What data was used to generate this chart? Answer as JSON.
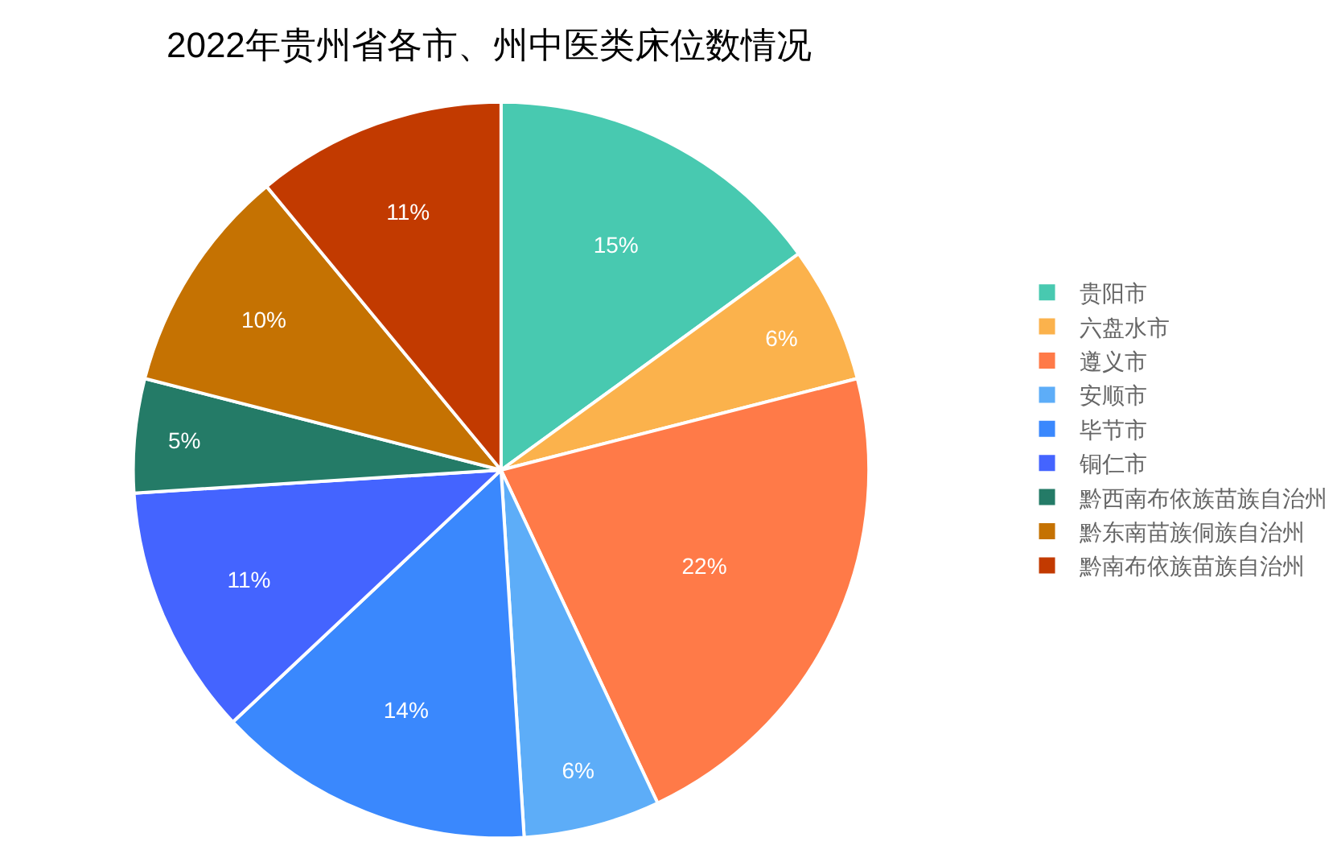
{
  "chart_data": {
    "type": "pie",
    "title": "2022年贵州省各市、州中医类床位数情况",
    "categories": [
      "贵阳市",
      "六盘水市",
      "遵义市",
      "安顺市",
      "毕节市",
      "铜仁市",
      "黔西南布依族苗族自治州",
      "黔东南苗族侗族自治州",
      "黔南布依族苗族自治州"
    ],
    "values": [
      15,
      6,
      22,
      6,
      14,
      11,
      5,
      10,
      11
    ],
    "value_labels": [
      "15%",
      "6%",
      "22%",
      "6%",
      "14%",
      "11%",
      "5%",
      "10%",
      "11%"
    ],
    "colors": [
      "#48c9b0",
      "#fbb24c",
      "#ff7a48",
      "#5dadf8",
      "#3a88fd",
      "#4464ff",
      "#247b67",
      "#c57202",
      "#c23a00"
    ],
    "legend": "right"
  }
}
